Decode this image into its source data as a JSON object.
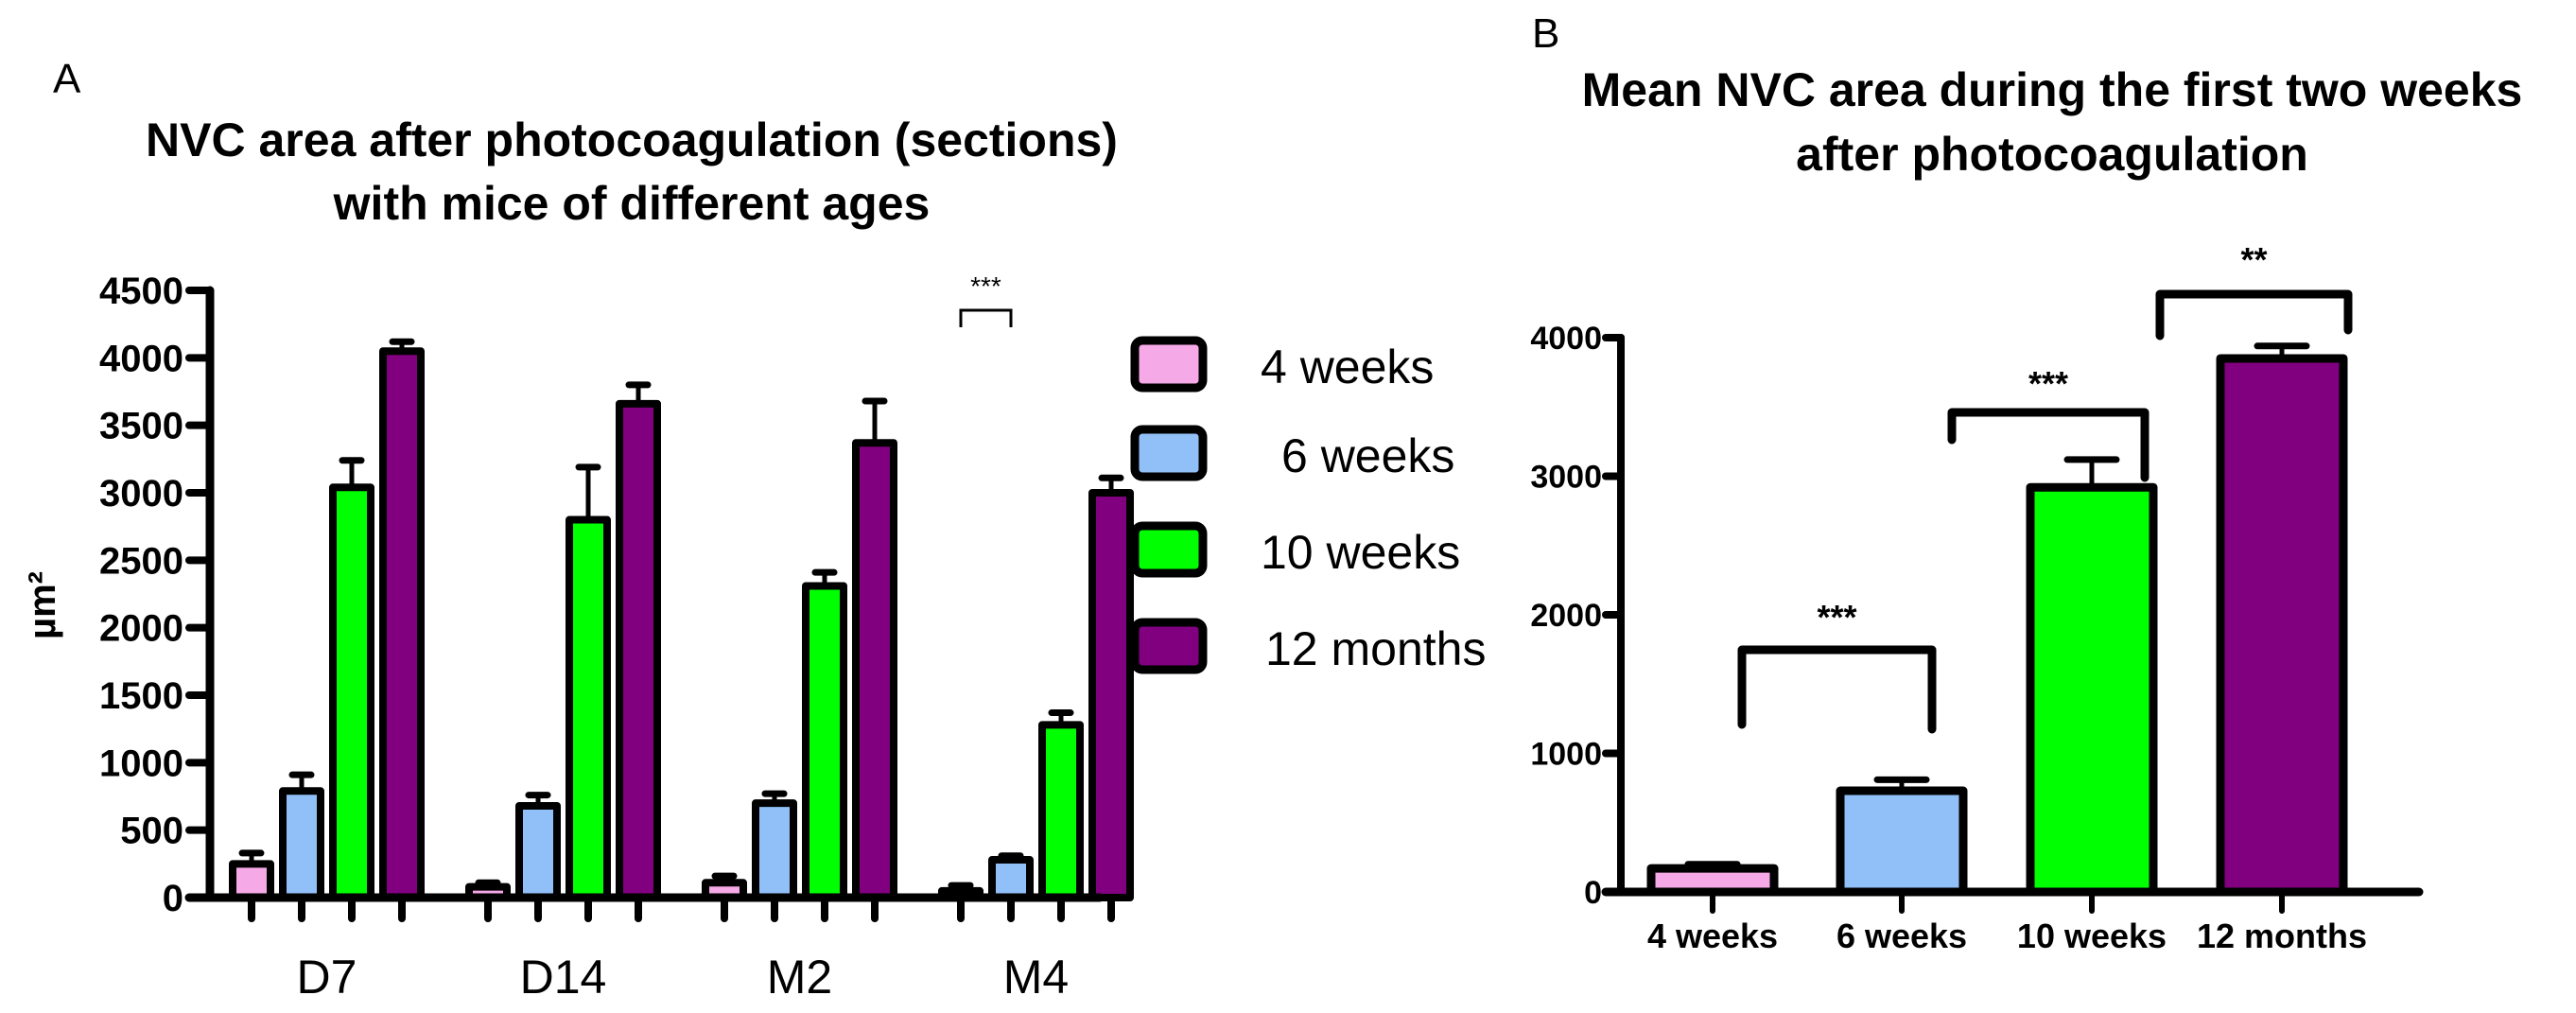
{
  "figure": {
    "panels": [
      "A",
      "B"
    ]
  },
  "chart_data": [
    {
      "type": "bar",
      "panel": "A",
      "title": "NVC area after photocoagulation (sections) with mice of different ages",
      "title_lines": [
        "NVC area after photocoagulation (sections)",
        "with mice of different ages"
      ],
      "xlabel": "",
      "ylabel": "µm²",
      "ylim": [
        0,
        4500
      ],
      "yticks": [
        0,
        500,
        1000,
        1500,
        2000,
        2500,
        3000,
        3500,
        4000,
        4500
      ],
      "grid": false,
      "legend_position": "right",
      "categories": [
        "D7",
        "D14",
        "M2",
        "M4"
      ],
      "series": [
        {
          "name": "4 weeks",
          "color": "#f5a9e6",
          "values": [
            250,
            80,
            110,
            50
          ],
          "error": [
            80,
            30,
            50,
            40
          ]
        },
        {
          "name": "6 weeks",
          "color": "#91bff8",
          "values": [
            790,
            680,
            700,
            280
          ],
          "error": [
            120,
            80,
            70,
            30
          ]
        },
        {
          "name": "10 weeks",
          "color": "#00ff00",
          "values": [
            3040,
            2800,
            2310,
            1280
          ],
          "error": [
            200,
            390,
            100,
            90
          ]
        },
        {
          "name": "12 months",
          "color": "#800080",
          "values": [
            4050,
            3660,
            3370,
            3000
          ],
          "error": [
            70,
            140,
            310,
            110
          ]
        }
      ],
      "annotations": [
        {
          "text": "***",
          "category": "M4",
          "between": [
            "4 weeks",
            "6 weeks"
          ]
        }
      ]
    },
    {
      "type": "bar",
      "panel": "B",
      "title": "Mean NVC area during the first two weeks after photocoagulation",
      "title_lines": [
        "Mean NVC area during the first two weeks",
        "after photocoagulation"
      ],
      "xlabel": "",
      "ylabel": "",
      "ylim": [
        0,
        4000
      ],
      "yticks": [
        0,
        1000,
        2000,
        3000,
        4000
      ],
      "grid": false,
      "categories": [
        "4 weeks",
        "6 weeks",
        "10 weeks",
        "12 months"
      ],
      "colors": [
        "#f5a9e6",
        "#91bff8",
        "#00ff00",
        "#800080"
      ],
      "values": [
        170,
        730,
        2920,
        3850
      ],
      "error": [
        30,
        80,
        200,
        90
      ],
      "annotations": [
        {
          "text": "***",
          "between": [
            "4 weeks",
            "6 weeks"
          ]
        },
        {
          "text": "***",
          "between": [
            "6 weeks",
            "10 weeks"
          ]
        },
        {
          "text": "**",
          "between": [
            "10 weeks",
            "12 months"
          ]
        }
      ]
    }
  ]
}
